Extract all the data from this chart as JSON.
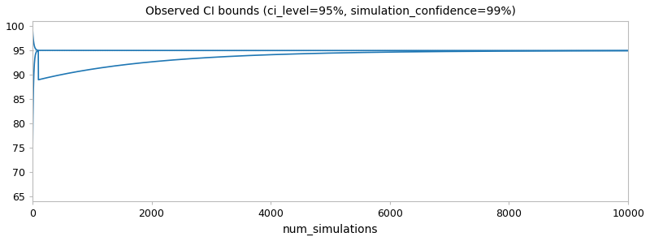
{
  "title": "Observed CI bounds (ci_level=95%, simulation_confidence=99%)",
  "xlabel": "num_simulations",
  "ylabel": "",
  "ci_level": 95,
  "sim_confidence": 99,
  "hline_y": 95,
  "hline_color": "#aaaaaa",
  "hline_style": "dotted",
  "line_color": "#1f77b4",
  "line_width": 1.2,
  "ylim": [
    64,
    101
  ],
  "xlim": [
    0,
    10000
  ],
  "figsize": [
    8.0,
    2.97
  ],
  "dpi": 100,
  "yticks": [
    65,
    70,
    75,
    80,
    85,
    90,
    95,
    100
  ],
  "xticks": [
    0,
    2000,
    4000,
    6000,
    8000,
    10000
  ],
  "bg_color": "#ffffff",
  "upper_start": 100.0,
  "upper_end": 95.35,
  "lower_start": 70.0,
  "lower_end": 94.65,
  "tau_upper": 2500,
  "tau_lower": 2000,
  "sharp_drop_x": 100,
  "lower_jump_y": 89.0,
  "lower_jump_x": 100
}
